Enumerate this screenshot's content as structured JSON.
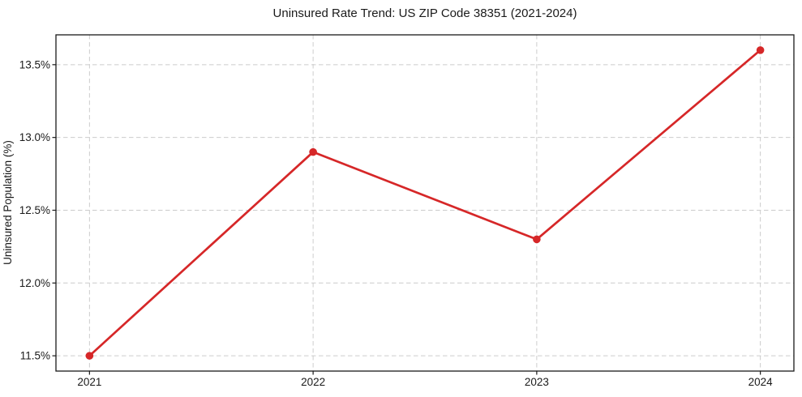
{
  "figure": {
    "background": "#ffffff"
  },
  "chart_data": {
    "type": "line",
    "title": "Uninsured Rate Trend: US ZIP Code 38351 (2021-2024)",
    "xlabel": "",
    "ylabel": "Uninsured Population (%)",
    "x": [
      2021,
      2022,
      2023,
      2024
    ],
    "x_labels": [
      "2021",
      "2022",
      "2023",
      "2024"
    ],
    "values": [
      11.5,
      12.9,
      12.3,
      13.6
    ],
    "yticks": [
      11.5,
      12.0,
      12.5,
      13.0,
      13.5
    ],
    "ytick_labels": [
      "11.5%",
      "12.0%",
      "12.5%",
      "13.0%",
      "13.5%"
    ],
    "xlim": [
      2020.85,
      2024.15
    ],
    "ylim": [
      11.395,
      13.705
    ],
    "grid": true,
    "grid_style": "dashed",
    "legend": "none",
    "line_color": "#d62728",
    "marker": "circle",
    "grid_color": "#cccccc",
    "axis_color": "#1a1a1a"
  }
}
